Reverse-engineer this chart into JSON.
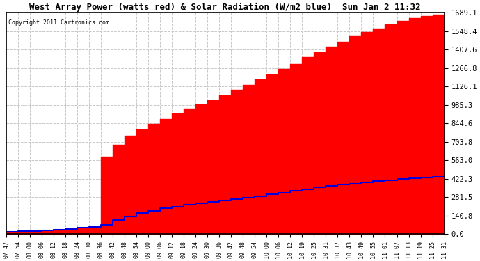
{
  "title": "West Array Power (watts red) & Solar Radiation (W/m2 blue)  Sun Jan 2 11:32",
  "copyright": "Copyright 2011 Cartronics.com",
  "background_color": "#ffffff",
  "plot_bg_color": "#ffffff",
  "grid_color": "#c8c8c8",
  "red_color": "#ff0000",
  "blue_color": "#0000dd",
  "ymin": 0.0,
  "ymax": 1689.1,
  "yticks": [
    0.0,
    140.8,
    281.5,
    422.3,
    563.0,
    703.8,
    844.6,
    985.3,
    1126.1,
    1266.8,
    1407.6,
    1548.4,
    1689.1
  ],
  "time_labels": [
    "07:47",
    "07:54",
    "08:00",
    "08:06",
    "08:12",
    "08:18",
    "08:24",
    "08:30",
    "08:36",
    "08:42",
    "08:48",
    "08:54",
    "09:00",
    "09:06",
    "09:12",
    "09:18",
    "09:24",
    "09:30",
    "09:36",
    "09:42",
    "09:48",
    "09:54",
    "10:00",
    "10:06",
    "10:12",
    "10:19",
    "10:25",
    "10:31",
    "10:37",
    "10:43",
    "10:49",
    "10:55",
    "11:01",
    "11:07",
    "11:13",
    "11:19",
    "11:25",
    "11:31"
  ],
  "red_values": [
    18,
    20,
    22,
    25,
    30,
    38,
    48,
    60,
    590,
    680,
    750,
    800,
    840,
    880,
    920,
    960,
    990,
    1020,
    1060,
    1100,
    1140,
    1180,
    1220,
    1260,
    1300,
    1350,
    1390,
    1430,
    1470,
    1510,
    1540,
    1570,
    1600,
    1630,
    1650,
    1665,
    1675,
    1689
  ],
  "blue_values": [
    18,
    20,
    23,
    27,
    32,
    38,
    46,
    56,
    70,
    105,
    135,
    158,
    178,
    195,
    210,
    222,
    233,
    244,
    255,
    266,
    278,
    290,
    302,
    315,
    328,
    342,
    355,
    366,
    376,
    386,
    395,
    404,
    411,
    418,
    424,
    430,
    435,
    440
  ]
}
